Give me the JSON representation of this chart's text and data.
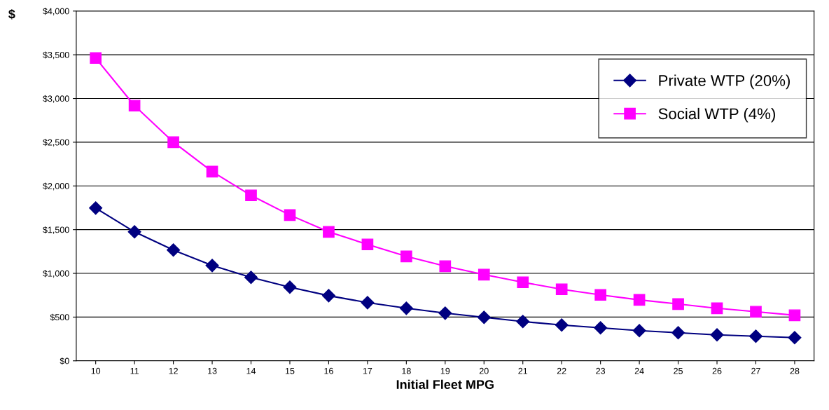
{
  "chart_data": {
    "type": "line",
    "xlabel": "Initial Fleet MPG",
    "ylabel": "$",
    "categories": [
      "10",
      "11",
      "12",
      "13",
      "14",
      "15",
      "16",
      "17",
      "18",
      "19",
      "20",
      "21",
      "22",
      "23",
      "24",
      "25",
      "26",
      "27",
      "28"
    ],
    "series": [
      {
        "name": "Private WTP (20%)",
        "color": "#000080",
        "marker": "diamond",
        "values": [
          1747,
          1475,
          1267,
          1090,
          954,
          842,
          745,
          665,
          601,
          545,
          497,
          449,
          409,
          377,
          345,
          321,
          297,
          281,
          265
        ]
      },
      {
        "name": "Social WTP (4%)",
        "color": "#ff00ff",
        "marker": "square",
        "values": [
          3463,
          2918,
          2501,
          2164,
          1892,
          1667,
          1475,
          1331,
          1194,
          1082,
          986,
          898,
          818,
          754,
          697,
          649,
          601,
          561,
          521
        ]
      }
    ],
    "ylim": [
      0,
      4000
    ],
    "yticks": [
      {
        "value": 0,
        "label": "$0"
      },
      {
        "value": 500,
        "label": "$500"
      },
      {
        "value": 1000,
        "label": "$1,000"
      },
      {
        "value": 1500,
        "label": "$1,500"
      },
      {
        "value": 2000,
        "label": "$2,000"
      },
      {
        "value": 2500,
        "label": "$2,500"
      },
      {
        "value": 3000,
        "label": "$3,000"
      },
      {
        "value": 3500,
        "label": "$3,500"
      },
      {
        "value": 4000,
        "label": "$4,000"
      }
    ],
    "grid": "y",
    "legend": "right",
    "line_style": "solid"
  }
}
